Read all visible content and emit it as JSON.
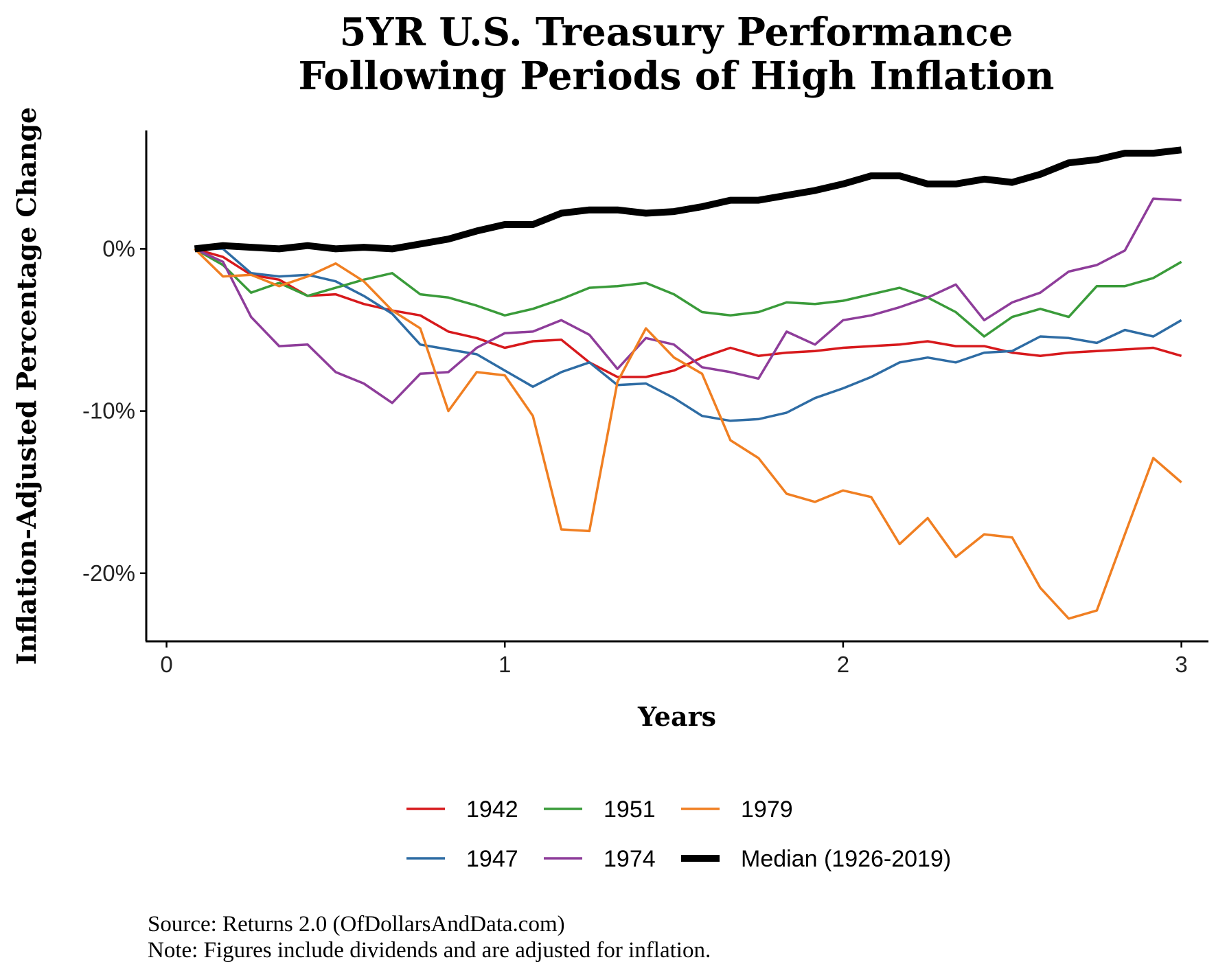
{
  "chart_data": {
    "type": "line",
    "title_lines": [
      "5YR U.S. Treasury Performance",
      "Following Periods of High Inflation"
    ],
    "xlabel": "Years",
    "ylabel": "Inflation-Adjusted Percentage Change",
    "xlim": [
      -0.06,
      3.08
    ],
    "ylim": [
      -24.2,
      7.3
    ],
    "x_ticks": [
      0,
      1,
      2,
      3
    ],
    "x_tick_labels": [
      "0",
      "1",
      "2",
      "3"
    ],
    "y_ticks": [
      0,
      -10,
      -20
    ],
    "y_tick_labels": [
      "0%",
      "-10%",
      "-20%"
    ],
    "grid": false,
    "legend_position": "bottom",
    "x": [
      0.083,
      0.167,
      0.25,
      0.333,
      0.417,
      0.5,
      0.583,
      0.667,
      0.75,
      0.833,
      0.917,
      1.0,
      1.083,
      1.167,
      1.25,
      1.333,
      1.417,
      1.5,
      1.583,
      1.667,
      1.75,
      1.833,
      1.917,
      2.0,
      2.083,
      2.167,
      2.25,
      2.333,
      2.417,
      2.5,
      2.583,
      2.667,
      2.75,
      2.833,
      2.917,
      3.0
    ],
    "series": [
      {
        "name": "1942",
        "color": "#d7191c",
        "width": 3.5,
        "values": [
          0.0,
          -0.5,
          -1.6,
          -1.9,
          -2.9,
          -2.8,
          -3.4,
          -3.8,
          -4.1,
          -5.1,
          -5.5,
          -6.1,
          -5.7,
          -5.6,
          -7.0,
          -7.9,
          -7.9,
          -7.5,
          -6.7,
          -6.1,
          -6.6,
          -6.4,
          -6.3,
          -6.1,
          -6.0,
          -5.9,
          -5.7,
          -6.0,
          -6.0,
          -6.4,
          -6.6,
          -6.4,
          -6.3,
          -6.2,
          -6.1,
          -6.6
        ]
      },
      {
        "name": "1947",
        "color": "#2e6ca4",
        "width": 3.5,
        "values": [
          0.0,
          0.0,
          -1.5,
          -1.7,
          -1.6,
          -2.0,
          -2.9,
          -4.0,
          -5.9,
          -6.2,
          -6.5,
          -7.5,
          -8.5,
          -7.6,
          -7.0,
          -8.4,
          -8.3,
          -9.2,
          -10.3,
          -10.6,
          -10.5,
          -10.1,
          -9.2,
          -8.6,
          -7.9,
          -7.0,
          -6.7,
          -7.0,
          -6.4,
          -6.3,
          -5.4,
          -5.5,
          -5.8,
          -5.0,
          -5.4,
          -4.4
        ]
      },
      {
        "name": "1951",
        "color": "#3a9b3a",
        "width": 3.5,
        "values": [
          0.0,
          -1.0,
          -2.7,
          -2.1,
          -2.9,
          -2.4,
          -1.9,
          -1.5,
          -2.8,
          -3.0,
          -3.5,
          -4.1,
          -3.7,
          -3.1,
          -2.4,
          -2.3,
          -2.1,
          -2.8,
          -3.9,
          -4.1,
          -3.9,
          -3.3,
          -3.4,
          -3.2,
          -2.8,
          -2.4,
          -3.0,
          -3.9,
          -5.4,
          -4.2,
          -3.7,
          -4.2,
          -2.3,
          -2.3,
          -1.8,
          -0.8
        ]
      },
      {
        "name": "1974",
        "color": "#8e3d9a",
        "width": 3.5,
        "values": [
          0.0,
          -0.8,
          -4.2,
          -6.0,
          -5.9,
          -7.6,
          -8.3,
          -9.5,
          -7.7,
          -7.6,
          -6.1,
          -5.2,
          -5.1,
          -4.4,
          -5.3,
          -7.4,
          -5.5,
          -5.9,
          -7.3,
          -7.6,
          -8.0,
          -5.1,
          -5.9,
          -4.4,
          -4.1,
          -3.6,
          -3.0,
          -2.2,
          -4.4,
          -3.3,
          -2.7,
          -1.4,
          -1.0,
          -0.1,
          3.1,
          3.0
        ]
      },
      {
        "name": "1979",
        "color": "#f07f22",
        "width": 3.5,
        "values": [
          0.0,
          -1.7,
          -1.6,
          -2.3,
          -1.7,
          -0.9,
          -2.0,
          -3.8,
          -4.9,
          -10.0,
          -7.6,
          -7.8,
          -10.3,
          -17.3,
          -17.4,
          -8.2,
          -4.9,
          -6.7,
          -7.7,
          -11.8,
          -12.9,
          -15.1,
          -15.6,
          -14.9,
          -15.3,
          -18.2,
          -16.6,
          -19.0,
          -17.6,
          -17.8,
          -20.9,
          -22.8,
          -22.3,
          -17.6,
          -12.9,
          -14.4
        ]
      },
      {
        "name": "Median (1926-2019)",
        "color": "#000000",
        "width": 10,
        "values": [
          0.0,
          0.2,
          0.1,
          0.0,
          0.2,
          0.0,
          0.1,
          0.0,
          0.3,
          0.6,
          1.1,
          1.5,
          1.5,
          2.2,
          2.4,
          2.4,
          2.2,
          2.3,
          2.6,
          3.0,
          3.0,
          3.3,
          3.6,
          4.0,
          4.5,
          4.5,
          4.0,
          4.0,
          4.3,
          4.1,
          4.6,
          5.3,
          5.5,
          5.9,
          5.9,
          6.1
        ]
      }
    ],
    "legend_order": [
      "1942",
      "1951",
      "1979",
      "1947",
      "1974",
      "Median (1926-2019)"
    ]
  },
  "captions": {
    "source": "Source: Returns 2.0 (OfDollarsAndData.com)",
    "note": "Note: Figures include dividends and are adjusted for inflation."
  }
}
